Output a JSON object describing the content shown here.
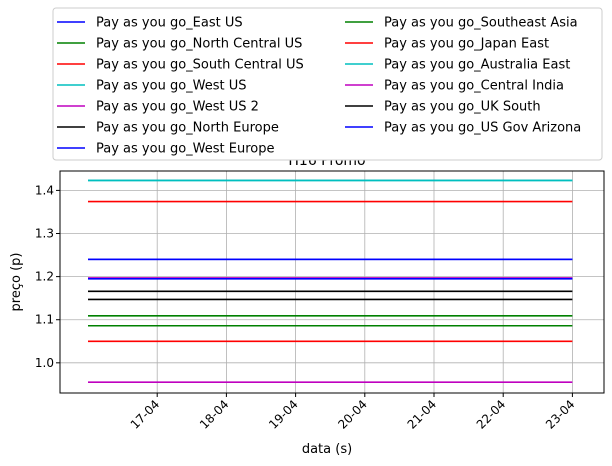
{
  "chart_data": {
    "type": "line",
    "title": "H16 Promo",
    "xlabel": "data (s)",
    "ylabel": "preço (p)",
    "x": [
      "16-04",
      "23-04"
    ],
    "xticks": [
      "17-04",
      "18-04",
      "19-04",
      "20-04",
      "21-04",
      "22-04",
      "23-04"
    ],
    "yticks": [
      1.0,
      1.1,
      1.2,
      1.3,
      1.4
    ],
    "ylim": [
      0.93,
      1.445
    ],
    "grid": true,
    "legend_position": "top (above plot, 2 columns)",
    "series": [
      {
        "name": "Pay as you go_East US",
        "color": "#0000ff",
        "values": [
          1.24,
          1.24
        ]
      },
      {
        "name": "Pay as you go_North Central US",
        "color": "#008000",
        "values": [
          1.109,
          1.109
        ]
      },
      {
        "name": "Pay as you go_South Central US",
        "color": "#ff0000",
        "values": [
          1.05,
          1.05
        ]
      },
      {
        "name": "Pay as you go_West US",
        "color": "#00bfbf",
        "values": [
          1.423,
          1.423
        ]
      },
      {
        "name": "Pay as you go_West US 2",
        "color": "#bf00bf",
        "values": [
          1.197,
          1.197
        ]
      },
      {
        "name": "Pay as you go_North Europe",
        "color": "#000000",
        "values": [
          1.166,
          1.166
        ]
      },
      {
        "name": "Pay as you go_West Europe",
        "color": "#0000ff",
        "values": [
          1.195,
          1.195
        ]
      },
      {
        "name": "Pay as you go_Southeast Asia",
        "color": "#008000",
        "values": [
          1.086,
          1.086
        ]
      },
      {
        "name": "Pay as you go_Japan East",
        "color": "#ff0000",
        "values": [
          1.374,
          1.374
        ]
      },
      {
        "name": "Pay as you go_Australia East",
        "color": "#00bfbf",
        "values": [
          1.423,
          1.423
        ]
      },
      {
        "name": "Pay as you go_Central India",
        "color": "#bf00bf",
        "values": [
          0.955,
          0.955
        ]
      },
      {
        "name": "Pay as you go_UK South",
        "color": "#000000",
        "values": [
          1.147,
          1.147
        ]
      },
      {
        "name": "Pay as you go_US Gov Arizona",
        "color": "#0000ff",
        "values": [
          1.24,
          1.24
        ]
      }
    ]
  }
}
